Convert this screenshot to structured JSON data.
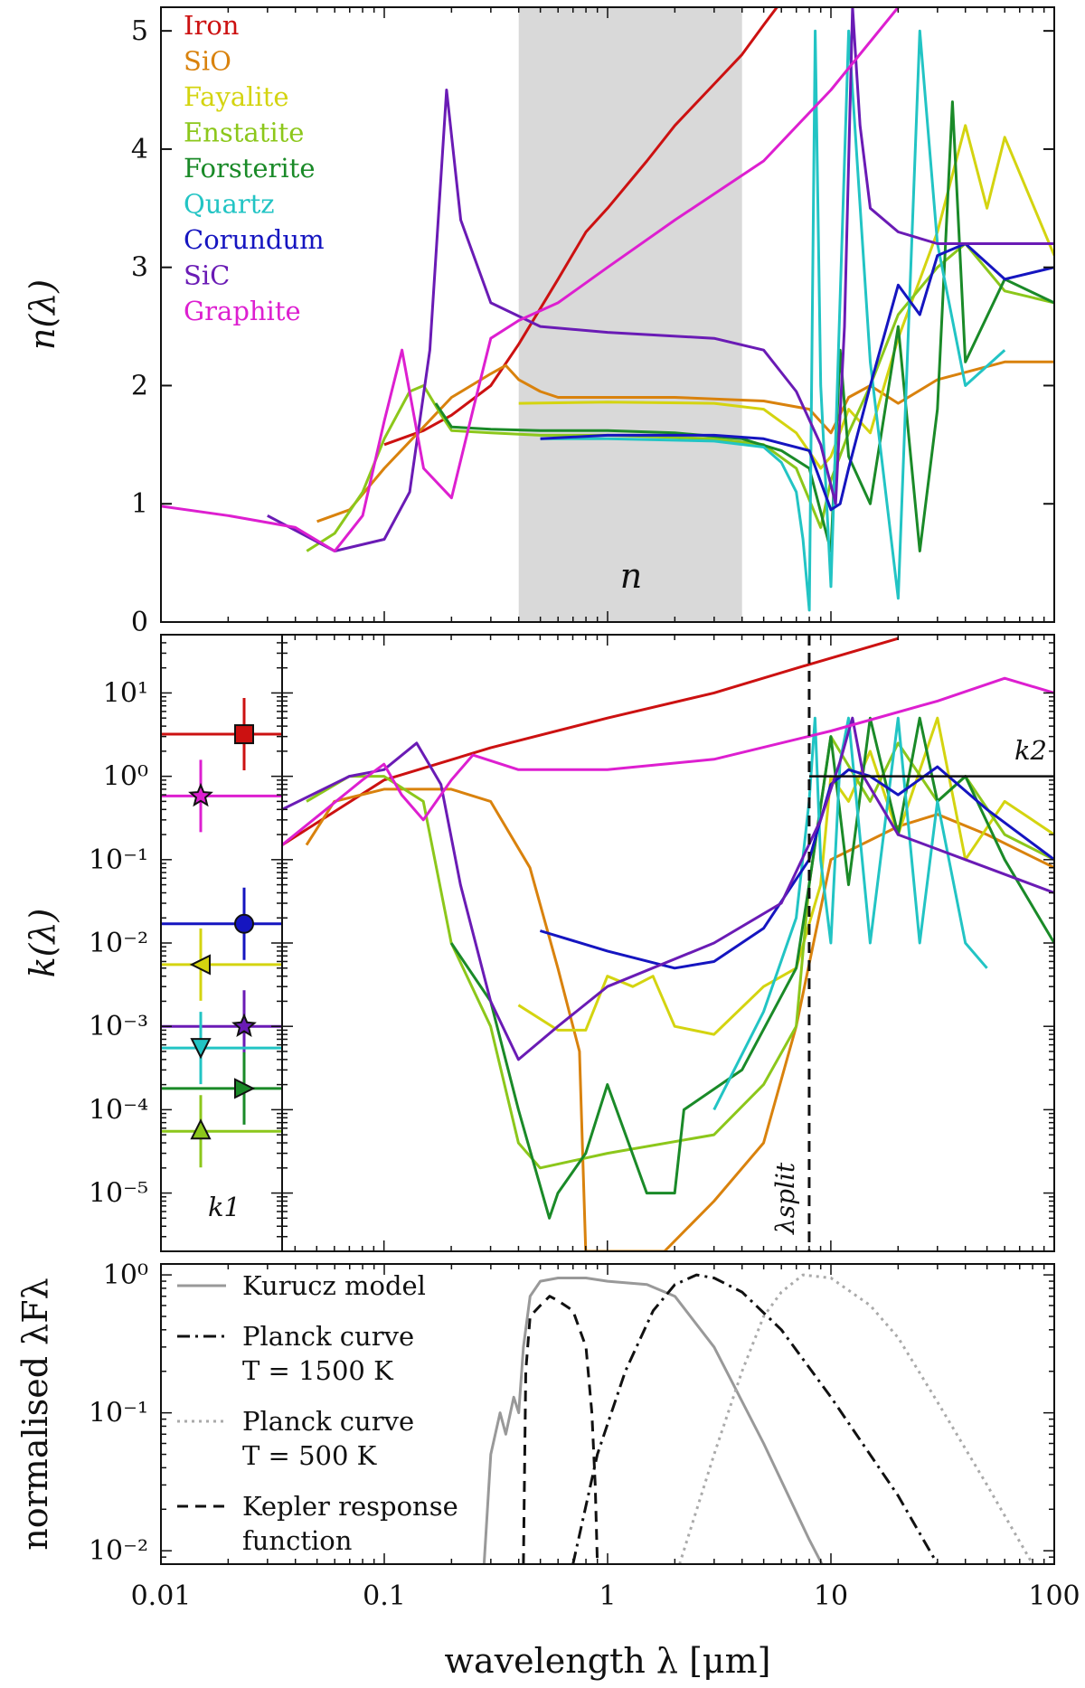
{
  "chart_data": [
    {
      "type": "line",
      "panel": "top",
      "ylabel": "n(λ)",
      "xscale": "log",
      "xlim": [
        0.01,
        100
      ],
      "ylim": [
        0,
        5.2
      ],
      "yticks": [
        "0",
        "1",
        "2",
        "3",
        "4",
        "5"
      ],
      "shaded_range": [
        0.4,
        4.0
      ],
      "shaded_label": "n",
      "series": [
        {
          "name": "Iron",
          "color": "#cc1111",
          "x": [
            0.1,
            0.15,
            0.2,
            0.3,
            0.4,
            0.6,
            0.8,
            1.0,
            1.5,
            2,
            3,
            4,
            5,
            6
          ],
          "y": [
            1.5,
            1.62,
            1.75,
            2.0,
            2.35,
            2.9,
            3.3,
            3.5,
            3.9,
            4.2,
            4.55,
            4.8,
            5.05,
            5.25
          ]
        },
        {
          "name": "SiO",
          "color": "#d9820d",
          "x": [
            0.05,
            0.07,
            0.1,
            0.15,
            0.2,
            0.3,
            0.35,
            0.4,
            0.5,
            0.6,
            1,
            2,
            5,
            8,
            10,
            12,
            15,
            20,
            30,
            60,
            100
          ],
          "y": [
            0.85,
            0.95,
            1.3,
            1.65,
            1.9,
            2.1,
            2.17,
            2.05,
            1.95,
            1.9,
            1.9,
            1.9,
            1.87,
            1.8,
            1.6,
            1.9,
            2.0,
            1.85,
            2.05,
            2.2,
            2.2
          ]
        },
        {
          "name": "Fayalite",
          "color": "#d4d410",
          "x": [
            0.4,
            1,
            3,
            5,
            7,
            9,
            10,
            12,
            15,
            20,
            30,
            40,
            50,
            60,
            100
          ],
          "y": [
            1.85,
            1.86,
            1.85,
            1.8,
            1.6,
            1.3,
            1.4,
            1.8,
            1.6,
            2.4,
            3.3,
            4.2,
            3.5,
            4.1,
            3.1
          ]
        },
        {
          "name": "Enstatite",
          "color": "#8cc71b",
          "x": [
            0.045,
            0.06,
            0.08,
            0.1,
            0.13,
            0.15,
            0.18,
            0.2,
            0.3,
            0.5,
            1,
            3,
            5,
            7,
            9,
            10,
            12,
            15,
            20,
            30,
            40,
            60,
            100
          ],
          "y": [
            0.6,
            0.75,
            1.1,
            1.55,
            1.95,
            2.0,
            1.75,
            1.62,
            1.6,
            1.58,
            1.58,
            1.55,
            1.5,
            1.3,
            0.8,
            1.2,
            1.6,
            2.0,
            2.6,
            3.0,
            3.2,
            2.8,
            2.7
          ]
        },
        {
          "name": "Forsterite",
          "color": "#1a8a28",
          "x": [
            0.17,
            0.2,
            0.3,
            0.5,
            1,
            2,
            4,
            6,
            8,
            10,
            11,
            12,
            15,
            20,
            25,
            30,
            35,
            40,
            60,
            100
          ],
          "y": [
            1.85,
            1.65,
            1.63,
            1.62,
            1.62,
            1.6,
            1.55,
            1.45,
            1.3,
            0.6,
            2.3,
            1.4,
            1.0,
            2.5,
            0.6,
            1.8,
            4.4,
            2.2,
            2.9,
            2.7
          ]
        },
        {
          "name": "Quartz",
          "color": "#22c4c4",
          "x": [
            0.5,
            1,
            3,
            5,
            6,
            7,
            7.5,
            8,
            8.5,
            9,
            10,
            12,
            15,
            20,
            25,
            30,
            40,
            60
          ],
          "y": [
            1.55,
            1.55,
            1.53,
            1.48,
            1.35,
            1.1,
            0.7,
            0.1,
            5.0,
            2.0,
            0.3,
            5.0,
            2.2,
            0.2,
            5.0,
            3.2,
            2.0,
            2.3
          ]
        },
        {
          "name": "Corundum",
          "color": "#1515c0",
          "x": [
            0.5,
            1,
            3,
            5,
            8,
            10,
            11,
            12,
            15,
            20,
            25,
            30,
            40,
            60,
            100
          ],
          "y": [
            1.55,
            1.58,
            1.58,
            1.55,
            1.45,
            0.95,
            1.0,
            1.3,
            2.0,
            2.85,
            2.6,
            3.1,
            3.2,
            2.9,
            3.0
          ]
        },
        {
          "name": "SiC",
          "color": "#6a1bb5",
          "x": [
            0.03,
            0.06,
            0.1,
            0.13,
            0.16,
            0.19,
            0.22,
            0.3,
            0.5,
            1,
            3,
            5,
            7,
            9,
            10.5,
            11.5,
            12.5,
            13.5,
            15,
            20,
            30,
            100
          ],
          "y": [
            0.9,
            0.6,
            0.7,
            1.1,
            2.3,
            4.5,
            3.4,
            2.7,
            2.5,
            2.45,
            2.4,
            2.3,
            1.95,
            1.5,
            1.0,
            2.5,
            5.2,
            4.2,
            3.5,
            3.3,
            3.2,
            3.2
          ]
        },
        {
          "name": "Graphite",
          "color": "#dd1fd0",
          "x": [
            0.01,
            0.02,
            0.04,
            0.06,
            0.08,
            0.1,
            0.12,
            0.15,
            0.2,
            0.25,
            0.3,
            0.4,
            0.6,
            1,
            2,
            5,
            10,
            20
          ],
          "y": [
            0.98,
            0.9,
            0.8,
            0.6,
            0.9,
            1.7,
            2.3,
            1.3,
            1.05,
            1.8,
            2.4,
            2.55,
            2.7,
            3.0,
            3.4,
            3.9,
            4.5,
            5.2
          ]
        }
      ]
    },
    {
      "type": "line",
      "panel": "middle",
      "ylabel": "k(λ)",
      "xscale": "log",
      "yscale": "log",
      "xlim": [
        0.035,
        100
      ],
      "ylim": [
        2e-06,
        50
      ],
      "yticks": [
        "10⁻⁵",
        "10⁻⁴",
        "10⁻³",
        "10⁻²",
        "10⁻¹",
        "10⁰",
        "10¹"
      ],
      "vline": {
        "x": 8.0,
        "label": "λsplit"
      },
      "k2": {
        "value": 1.0,
        "from": 8.0,
        "label": "k2"
      },
      "inset": {
        "label": "k1",
        "markers": [
          {
            "material": "Iron",
            "value": 3.2,
            "marker": "square",
            "color": "#cc1111"
          },
          {
            "material": "Graphite",
            "value": 0.58,
            "marker": "star",
            "color": "#dd1fd0"
          },
          {
            "material": "Corundum",
            "value": 0.017,
            "marker": "circle",
            "color": "#1515c0"
          },
          {
            "material": "Fayalite",
            "value": 0.0055,
            "marker": "triangle-left",
            "color": "#d4d410"
          },
          {
            "material": "SiC",
            "value": 0.001,
            "marker": "star",
            "color": "#6a1bb5"
          },
          {
            "material": "Quartz",
            "value": 0.00055,
            "marker": "triangle-down",
            "color": "#22c4c4"
          },
          {
            "material": "Forsterite",
            "value": 0.00018,
            "marker": "triangle-right",
            "color": "#1a8a28"
          },
          {
            "material": "Enstatite",
            "value": 5.5e-05,
            "marker": "triangle-up",
            "color": "#8cc71b"
          }
        ]
      },
      "series": [
        {
          "name": "Iron",
          "color": "#cc1111",
          "x": [
            0.035,
            0.1,
            0.3,
            1,
            3,
            8,
            20
          ],
          "y": [
            0.15,
            0.9,
            2.2,
            5,
            10,
            22,
            45
          ]
        },
        {
          "name": "SiO",
          "color": "#d9820d",
          "x": [
            0.045,
            0.06,
            0.1,
            0.2,
            0.3,
            0.45,
            0.6,
            0.75,
            0.8,
            1.8,
            3,
            5,
            7,
            10,
            20,
            30,
            50,
            100
          ],
          "y": [
            0.15,
            0.5,
            0.7,
            0.7,
            0.5,
            0.08,
            0.005,
            0.0005,
            2e-06,
            2e-06,
            8e-06,
            4e-05,
            0.001,
            0.1,
            0.25,
            0.35,
            0.2,
            0.08
          ]
        },
        {
          "name": "Fayalite",
          "color": "#d4d410",
          "x": [
            0.4,
            0.6,
            0.8,
            1,
            1.3,
            1.6,
            2,
            3,
            5,
            7,
            9,
            10,
            12,
            15,
            20,
            30,
            40,
            60,
            100
          ],
          "y": [
            0.0018,
            0.0009,
            0.0009,
            0.004,
            0.003,
            0.004,
            0.001,
            0.0008,
            0.003,
            0.005,
            0.05,
            1.0,
            0.5,
            2.0,
            0.2,
            5.0,
            0.1,
            0.5,
            0.2
          ]
        },
        {
          "name": "Enstatite",
          "color": "#8cc71b",
          "x": [
            0.045,
            0.07,
            0.1,
            0.15,
            0.2,
            0.3,
            0.4,
            0.5,
            1,
            3,
            5,
            7,
            8,
            10,
            15,
            20,
            30,
            40,
            60,
            100
          ],
          "y": [
            0.5,
            1.0,
            1.0,
            0.5,
            0.01,
            0.001,
            4e-05,
            2e-05,
            3e-05,
            5e-05,
            0.0002,
            0.001,
            0.05,
            3,
            0.5,
            2.5,
            0.5,
            1.0,
            0.2,
            0.1
          ]
        },
        {
          "name": "Forsterite",
          "color": "#1a8a28",
          "x": [
            0.2,
            0.3,
            0.4,
            0.55,
            0.6,
            0.8,
            1.0,
            1.5,
            2,
            2.2,
            4,
            7,
            8,
            10,
            12,
            15,
            20,
            25,
            30,
            40,
            60,
            100
          ],
          "y": [
            0.01,
            0.002,
            0.0001,
            5e-06,
            1e-05,
            3e-05,
            0.0002,
            1e-05,
            1e-05,
            0.0001,
            0.0003,
            0.005,
            0.05,
            3,
            0.05,
            5,
            0.2,
            5,
            0.5,
            1.0,
            0.1,
            0.01
          ]
        },
        {
          "name": "Quartz",
          "color": "#22c4c4",
          "x": [
            3,
            5,
            7,
            8,
            8.5,
            9,
            10,
            11,
            12,
            15,
            20,
            25,
            30,
            40,
            50
          ],
          "y": [
            0.0001,
            0.0015,
            0.02,
            0.5,
            5,
            0.1,
            0.01,
            1.5,
            5,
            0.01,
            5,
            0.01,
            0.5,
            0.01,
            0.005
          ]
        },
        {
          "name": "Corundum",
          "color": "#1515c0",
          "x": [
            0.5,
            1,
            2,
            3,
            5,
            8,
            10,
            12,
            15,
            20,
            30,
            50,
            100
          ],
          "y": [
            0.014,
            0.008,
            0.005,
            0.006,
            0.015,
            0.1,
            0.8,
            1.2,
            1.0,
            0.6,
            1.3,
            0.4,
            0.1
          ]
        },
        {
          "name": "SiC",
          "color": "#6a1bb5",
          "x": [
            0.035,
            0.07,
            0.1,
            0.14,
            0.18,
            0.22,
            0.3,
            0.4,
            0.6,
            1,
            3,
            6,
            9,
            11,
            12.5,
            14,
            20,
            40,
            100
          ],
          "y": [
            0.4,
            1.0,
            1.2,
            2.5,
            0.8,
            0.05,
            0.002,
            0.0004,
            0.001,
            0.003,
            0.01,
            0.03,
            0.3,
            1.5,
            5,
            1.0,
            0.2,
            0.1,
            0.04
          ]
        },
        {
          "name": "Graphite",
          "color": "#dd1fd0",
          "x": [
            0.035,
            0.08,
            0.1,
            0.12,
            0.15,
            0.2,
            0.25,
            0.4,
            1,
            3,
            10,
            30,
            60,
            100
          ],
          "y": [
            0.15,
            0.9,
            1.4,
            0.6,
            0.3,
            0.9,
            1.8,
            1.2,
            1.2,
            1.6,
            3.5,
            8,
            15,
            10
          ]
        }
      ]
    },
    {
      "type": "line",
      "panel": "bottom",
      "ylabel": "normalised λFλ",
      "xlabel": "wavelength λ [μm]",
      "xscale": "log",
      "yscale": "log",
      "xlim": [
        0.01,
        100
      ],
      "ylim": [
        0.008,
        1.2
      ],
      "xticks": [
        "0.01",
        "0.1",
        "1",
        "10",
        "100"
      ],
      "yticks": [
        "10⁻²",
        "10⁻¹",
        "10⁰"
      ],
      "series": [
        {
          "name": "Kurucz model",
          "legend": [
            "Kurucz model"
          ],
          "color": "#999999",
          "style": "solid",
          "x": [
            0.28,
            0.3,
            0.33,
            0.35,
            0.38,
            0.4,
            0.42,
            0.45,
            0.5,
            0.6,
            0.8,
            1,
            1.5,
            2,
            3,
            5,
            8,
            10
          ],
          "y": [
            0.008,
            0.05,
            0.1,
            0.07,
            0.13,
            0.1,
            0.3,
            0.7,
            0.9,
            0.95,
            0.95,
            0.9,
            0.85,
            0.7,
            0.3,
            0.06,
            0.012,
            0.006
          ]
        },
        {
          "name": "Planck curve T = 1500 K",
          "legend": [
            "Planck curve",
            "T = 1500 K"
          ],
          "color": "#111111",
          "style": "dashdot",
          "x": [
            0.7,
            0.9,
            1.2,
            1.6,
            2,
            2.5,
            3,
            4,
            6,
            10,
            20,
            30
          ],
          "y": [
            0.008,
            0.05,
            0.2,
            0.55,
            0.85,
            1.0,
            0.95,
            0.75,
            0.4,
            0.13,
            0.025,
            0.008
          ]
        },
        {
          "name": "Planck curve T = 500 K",
          "legend": [
            "Planck curve",
            "T = 500 K"
          ],
          "color": "#aaaaaa",
          "style": "dotted",
          "x": [
            2.1,
            3,
            4,
            5,
            6,
            7.5,
            10,
            15,
            20,
            30,
            50,
            80
          ],
          "y": [
            0.008,
            0.05,
            0.2,
            0.5,
            0.75,
            1.0,
            0.95,
            0.6,
            0.35,
            0.12,
            0.03,
            0.008
          ]
        },
        {
          "name": "Kepler response function",
          "legend": [
            "Kepler response",
            "function"
          ],
          "color": "#111111",
          "style": "dashed",
          "x": [
            0.42,
            0.43,
            0.45,
            0.5,
            0.55,
            0.6,
            0.7,
            0.8,
            0.85,
            0.88,
            0.9
          ],
          "y": [
            0.008,
            0.2,
            0.5,
            0.6,
            0.7,
            0.65,
            0.55,
            0.3,
            0.1,
            0.03,
            0.008
          ]
        }
      ]
    }
  ]
}
